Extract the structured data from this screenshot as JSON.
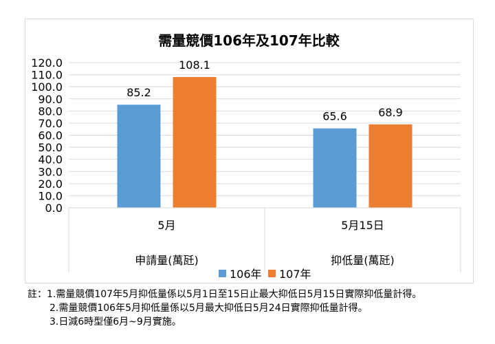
{
  "chart_data": {
    "type": "bar",
    "title": "需量競價106年及107年比較",
    "categories": [
      "5月",
      "5月15日"
    ],
    "group_labels": [
      "申請量(萬瓩)",
      "抑低量(萬瓩)"
    ],
    "series": [
      {
        "name": "106年",
        "values": [
          85.2,
          65.6
        ],
        "labels": [
          "85.2",
          "65.6"
        ],
        "color": "#5b9bd5"
      },
      {
        "name": "107年",
        "values": [
          108.1,
          68.9
        ],
        "labels": [
          "108.1",
          "68.9"
        ],
        "color": "#ed7d31"
      }
    ],
    "yticks": [
      "0.0",
      "10.0",
      "20.0",
      "30.0",
      "40.0",
      "50.0",
      "60.0",
      "70.0",
      "80.0",
      "90.0",
      "100.0",
      "110.0",
      "120.0"
    ],
    "ylim": [
      0,
      120
    ],
    "grid": true,
    "legend": "bottom"
  },
  "notes": {
    "prefix": "註：",
    "items": [
      "1.需量競價107年5月抑低量係以5月1日至15日止最大抑低日5月15日實際抑低量計得。",
      "2.需量競價106年5月抑低量係以5月最大抑低日5月24日實際抑低量計得。",
      "3.日減6時型僅6月~9月實施。"
    ]
  }
}
